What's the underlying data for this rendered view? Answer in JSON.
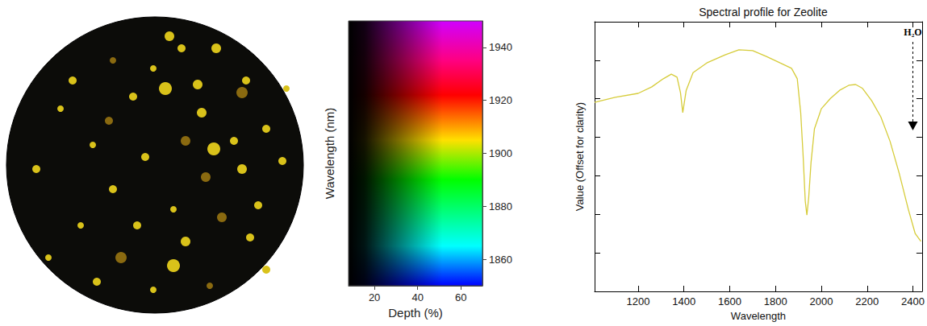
{
  "chart_data": [
    {
      "type": "colormap",
      "xlabel": "Depth (%)",
      "ylabel": "Wavelength (nm)",
      "xlim": [
        8,
        70
      ],
      "xticks": [
        20,
        40,
        60
      ],
      "ylim": [
        1850,
        1950
      ],
      "yticks": [
        1860,
        1880,
        1900,
        1920,
        1940
      ]
    },
    {
      "type": "line",
      "title": "Spectral profile for Zeolite",
      "xlabel": "Wavelength",
      "ylabel": "Value (Offset for clarity)",
      "x": [
        1010,
        1100,
        1200,
        1260,
        1310,
        1345,
        1370,
        1385,
        1395,
        1410,
        1440,
        1500,
        1580,
        1640,
        1700,
        1760,
        1820,
        1870,
        1895,
        1910,
        1920,
        1930,
        1937,
        1945,
        1955,
        1970,
        2000,
        2040,
        2080,
        2120,
        2150,
        2180,
        2220,
        2260,
        2300,
        2340,
        2380,
        2410,
        2435
      ],
      "values": [
        4.91,
        5.04,
        5.14,
        5.31,
        5.52,
        5.64,
        5.56,
        5.16,
        4.64,
        5.22,
        5.68,
        5.93,
        6.14,
        6.27,
        6.25,
        6.1,
        5.93,
        5.79,
        5.52,
        4.64,
        3.59,
        2.34,
        1.98,
        2.44,
        3.34,
        4.22,
        4.74,
        5.01,
        5.22,
        5.35,
        5.37,
        5.27,
        4.95,
        4.53,
        3.9,
        3.07,
        2.13,
        1.5,
        1.3
      ],
      "color": "#d6cc3a",
      "xlim": [
        1010,
        2440
      ],
      "xticks": [
        1200,
        1400,
        1600,
        1800,
        2000,
        2200,
        2400
      ],
      "ylim": [
        0,
        7
      ],
      "yticks": [
        1,
        2,
        3,
        4,
        5,
        6
      ],
      "tick_labels": "x",
      "annotations": [
        {
          "text": "H₂O"
        }
      ]
    }
  ]
}
